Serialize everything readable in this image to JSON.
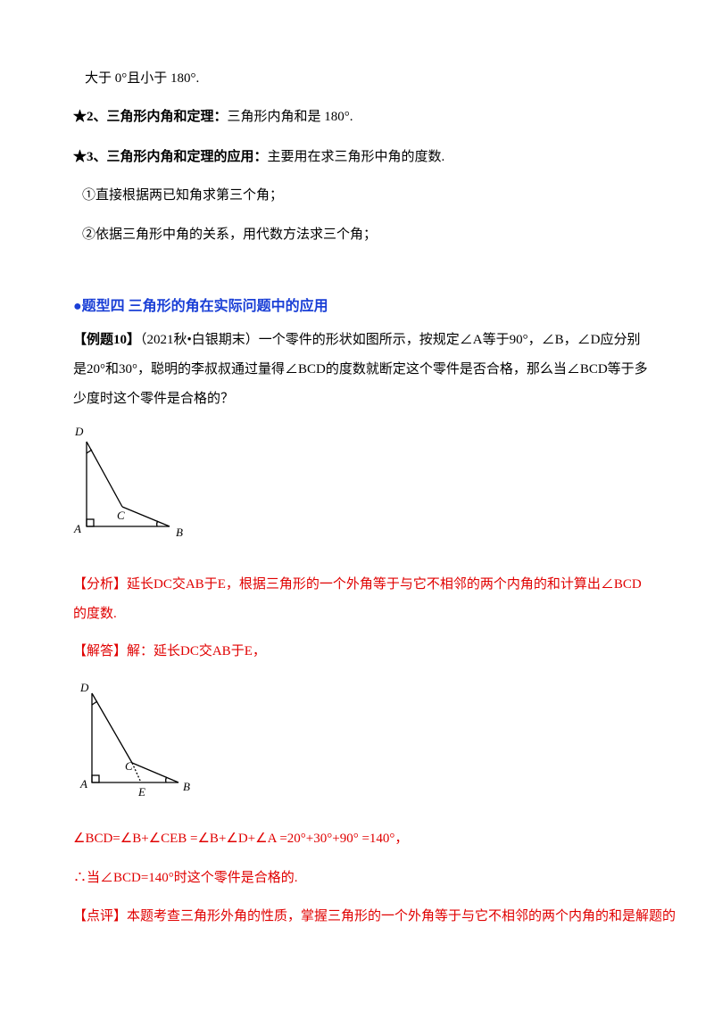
{
  "points": [
    {
      "text": "大于 0°且小于 180°."
    },
    {
      "label": "★2、三角形内角和定理：",
      "text": "三角形内角和是 180°."
    },
    {
      "label": "★3、三角形内角和定理的应用：",
      "text": "主要用在求三角形中角的度数."
    },
    {
      "text": "①直接根据两已知角求第三个角；"
    },
    {
      "text": "②依据三角形中角的关系，用代数方法求三个角；"
    }
  ],
  "section_title": "●题型四  三角形的角在实际问题中的应用",
  "example": {
    "label": "【例题10】",
    "text": "（2021秋•白银期末）一个零件的形状如图所示，按规定∠A等于90°，∠B，∠D应分别是20°和30°，聪明的李叔叔通过量得∠BCD的度数就断定这个零件是否合格，那么当∠BCD等于多少度时这个零件是合格的？"
  },
  "figure1": {
    "labels": [
      "D",
      "C",
      "A",
      "B"
    ]
  },
  "analysis": {
    "label": "【分析】",
    "text": "延长DC交AB于E，根据三角形的一个外角等于与它不相邻的两个内角的和计算出∠BCD的度数."
  },
  "answer": {
    "label": "【解答】",
    "text": "解：延长DC交AB于E，"
  },
  "figure2": {
    "labels": [
      "D",
      "C",
      "A",
      "E",
      "B"
    ]
  },
  "steps": [
    "∠BCD=∠B+∠CEB =∠B+∠D+∠A  =20°+30°+90°  =140°，",
    "∴当∠BCD=140°时这个零件是合格的."
  ],
  "comment": {
    "label": "【点评】",
    "text": "本题考查三角形外角的性质，掌握三角形的一个外角等于与它不相邻的两个内角的和是解题的"
  }
}
